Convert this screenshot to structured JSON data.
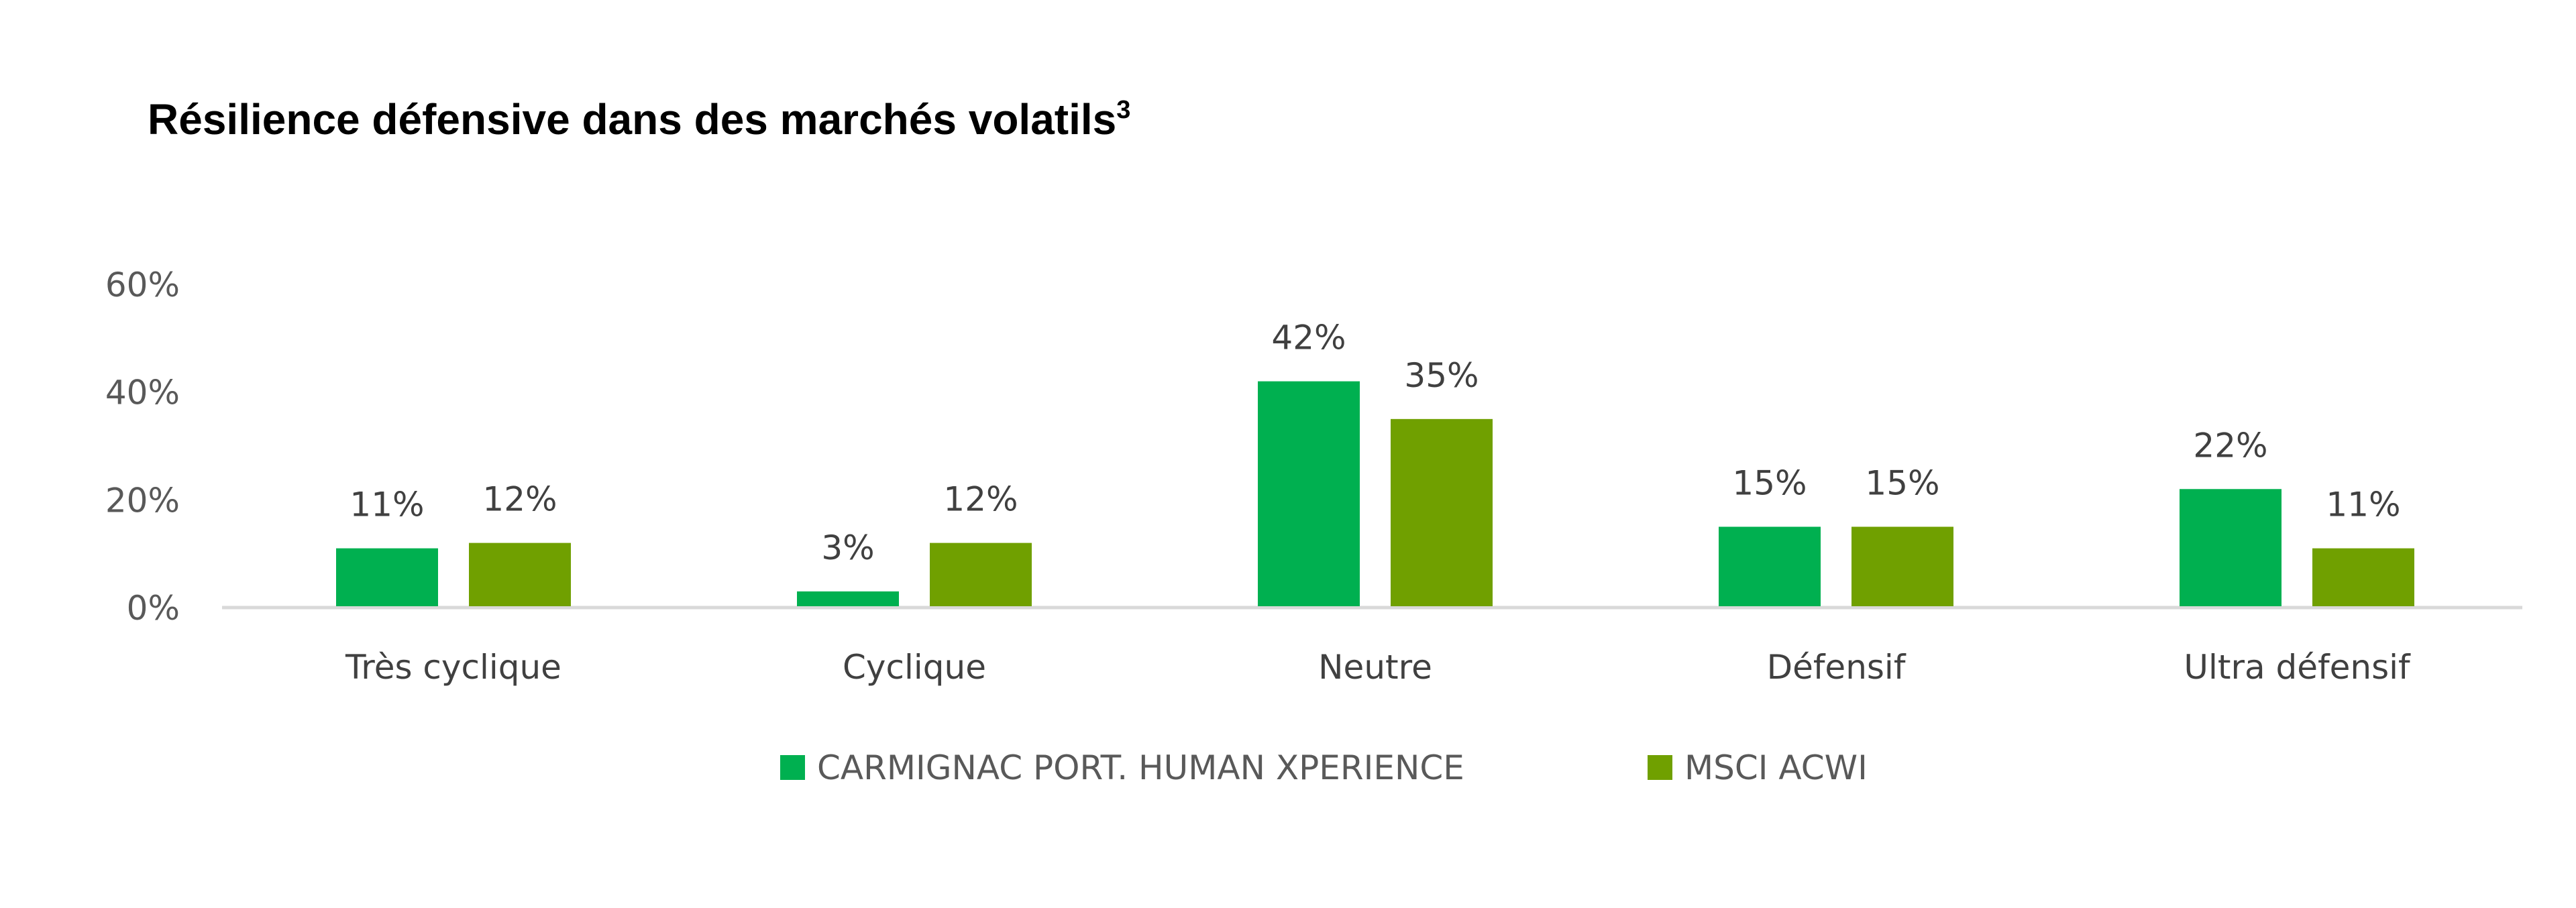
{
  "chart_data": {
    "type": "bar",
    "title": "Résilience défensive dans des marchés volatils",
    "title_superscript": "3",
    "categories": [
      "Très cyclique",
      "Cyclique",
      "Neutre",
      "Défensif",
      "Ultra défensif"
    ],
    "series": [
      {
        "name": "CARMIGNAC PORT. HUMAN XPERIENCE",
        "color": "#00B050",
        "values": [
          11,
          3,
          42,
          15,
          22
        ],
        "labels": [
          "11%",
          "3%",
          "42%",
          "15%",
          "22%"
        ]
      },
      {
        "name": "MSCI ACWI",
        "color": "#70A000",
        "values": [
          12,
          12,
          35,
          15,
          11
        ],
        "labels": [
          "12%",
          "12%",
          "35%",
          "15%",
          "11%"
        ]
      }
    ],
    "yticks": [
      0,
      20,
      40,
      60
    ],
    "ytick_labels": [
      "0%",
      "20%",
      "40%",
      "60%"
    ],
    "ylim": [
      0,
      60
    ],
    "xlabel": "",
    "ylabel": "",
    "grid": false,
    "legend_position": "bottom"
  }
}
